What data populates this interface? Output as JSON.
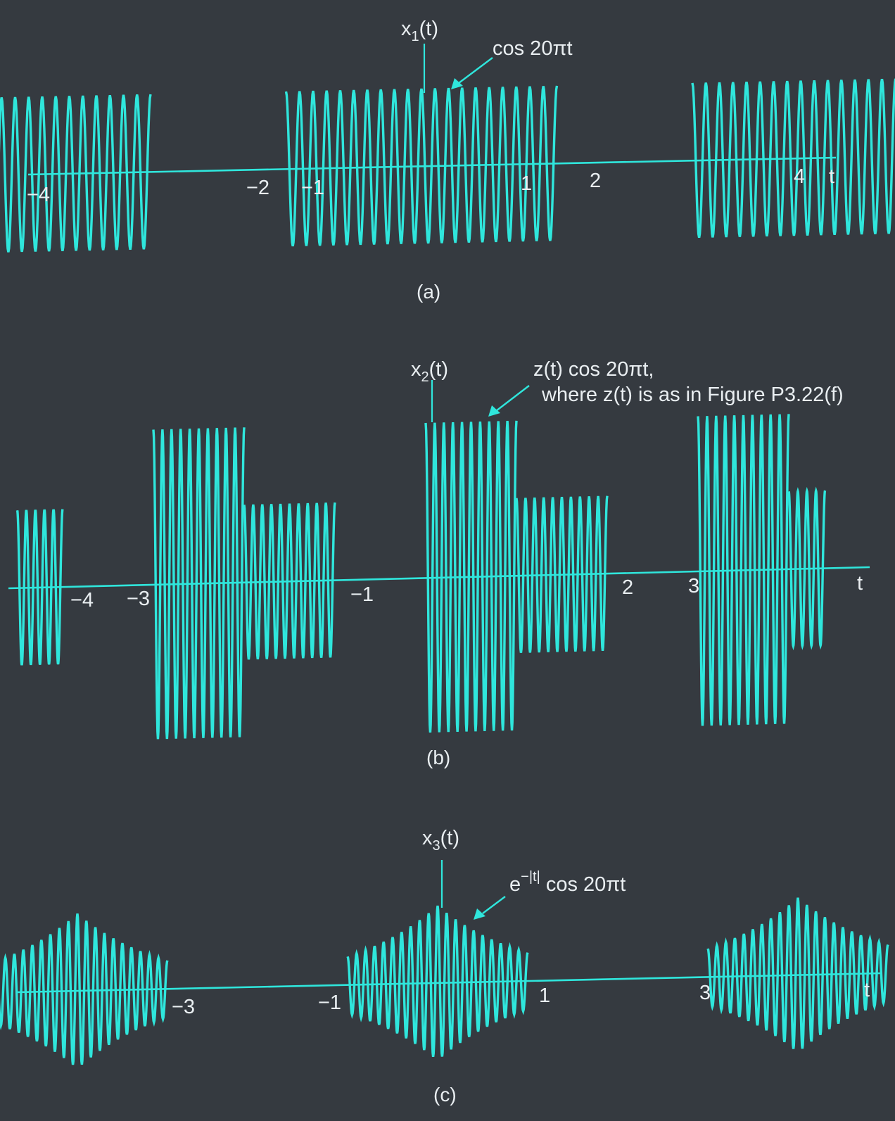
{
  "chart_data": [
    {
      "type": "line",
      "caption": "(a)",
      "ylabel": "x1(t)",
      "ylabel_parts": {
        "base": "x",
        "sub": "1",
        "rest": "(t)"
      },
      "xlabel": "t",
      "annotation": "cos 20πt",
      "tick_labels": [
        "−4",
        "−2",
        "−1",
        "1",
        "2",
        "4"
      ],
      "tick_values": [
        -4,
        -2,
        -1,
        1,
        2,
        4
      ],
      "carrier_frequency_hz": 10,
      "segments": [
        {
          "t_start": -4,
          "t_end": -2,
          "amplitude": 1
        },
        {
          "t_start": -1,
          "t_end": 1,
          "amplitude": 1
        },
        {
          "t_start": 2,
          "t_end": 4,
          "amplitude": 1
        }
      ]
    },
    {
      "type": "line",
      "caption": "(b)",
      "ylabel": "x2(t)",
      "ylabel_parts": {
        "base": "x",
        "sub": "2",
        "rest": "(t)"
      },
      "xlabel": "t",
      "annotation": [
        "z(t) cos 20πt,",
        "where z(t) is as in Figure P3.22(f)"
      ],
      "tick_labels": [
        "−4",
        "−3",
        "−1",
        "2",
        "3"
      ],
      "tick_values": [
        -4,
        -3,
        -1,
        2,
        3
      ],
      "carrier_frequency_hz": 10,
      "segments": [
        {
          "t_start": -4.5,
          "t_end": -4,
          "amplitude": 0.5
        },
        {
          "t_start": -3,
          "t_end": -2,
          "amplitude": 1
        },
        {
          "t_start": -2,
          "t_end": -1,
          "amplitude": 0.5
        },
        {
          "t_start": 0,
          "t_end": 1,
          "amplitude": 1
        },
        {
          "t_start": 1,
          "t_end": 2,
          "amplitude": 0.5
        },
        {
          "t_start": 3,
          "t_end": 4,
          "amplitude": 1
        },
        {
          "t_start": 4,
          "t_end": 4.4,
          "amplitude": 0.5
        }
      ]
    },
    {
      "type": "line",
      "caption": "(c)",
      "ylabel": "x3(t)",
      "ylabel_parts": {
        "base": "x",
        "sub": "3",
        "rest": "(t)"
      },
      "xlabel": "t",
      "annotation_parts": {
        "base": "e",
        "sup": "−|t|",
        "rest": " cos 20πt"
      },
      "tick_labels": [
        "−3",
        "−1",
        "1",
        "3"
      ],
      "tick_values": [
        -3,
        -1,
        1,
        3
      ],
      "carrier_frequency_hz": 10,
      "envelope": "e^(−|t|), repeating every 4",
      "segments": [
        {
          "t_start": -5,
          "t_end": -3,
          "peak_t": -4
        },
        {
          "t_start": -1,
          "t_end": 1,
          "peak_t": 0
        },
        {
          "t_start": 3,
          "t_end": 5,
          "peak_t": 4
        }
      ]
    }
  ]
}
